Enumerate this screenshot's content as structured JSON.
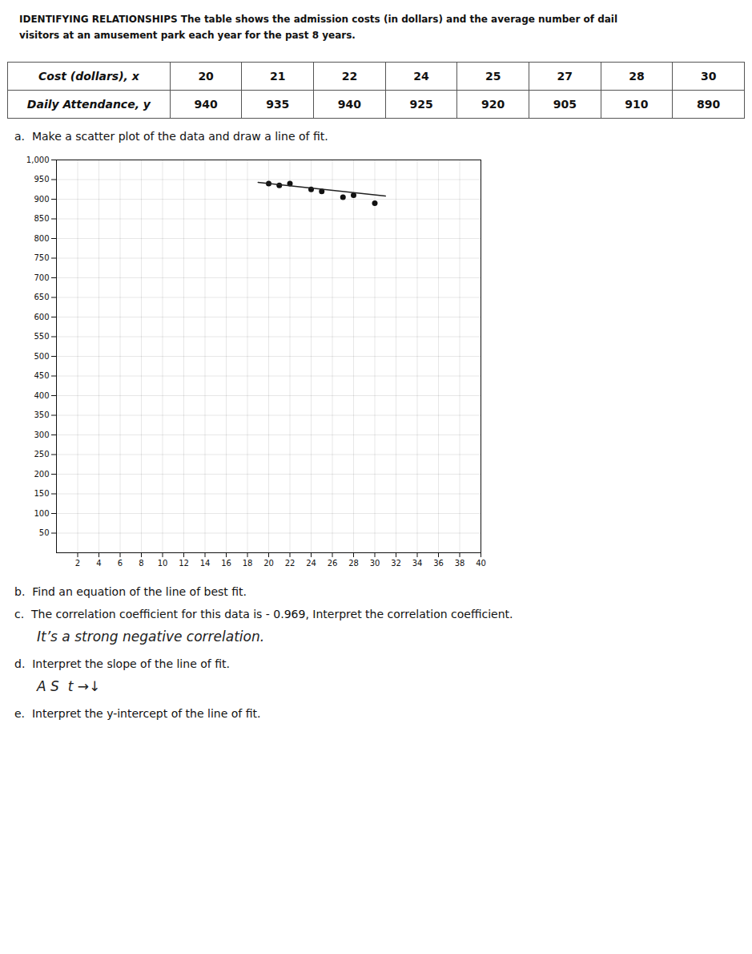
{
  "chart_data": {
    "type": "scatter",
    "title": "IDENTIFYING RELATIONSHIPS The table shows the admission costs (in dollars) and the average number of dail",
    "subtitle": "visitors at an amusement park each year for the past 8 years.",
    "table": {
      "rows": [
        [
          "Cost (dollars), x",
          "20",
          "21",
          "22",
          "24",
          "25",
          "27",
          "28",
          "30"
        ],
        [
          "Daily Attendance, y",
          "940",
          "935",
          "940",
          "925",
          "920",
          "905",
          "910",
          "890"
        ]
      ]
    },
    "series": [
      {
        "type": "scatter",
        "x": [
          20,
          21,
          22,
          24,
          25,
          27,
          28,
          30
        ],
        "values": [
          940,
          935,
          940,
          925,
          920,
          905,
          910,
          890
        ],
        "color": "#111111"
      },
      {
        "type": "line",
        "x": [
          19,
          31
        ],
        "values": [
          943,
          908
        ],
        "color": "#222222"
      }
    ],
    "xlim": [
      0,
      40
    ],
    "ylim": [
      0,
      1000
    ],
    "xticks": [
      2,
      4,
      6,
      8,
      10,
      12,
      14,
      16,
      18,
      20,
      22,
      24,
      26,
      28,
      30,
      32,
      34,
      36,
      38,
      40
    ],
    "yticks": [
      50,
      100,
      150,
      200,
      250,
      300,
      350,
      400,
      450,
      500,
      550,
      600,
      650,
      700,
      750,
      800,
      850,
      900,
      950,
      1000
    ],
    "grid": true,
    "questions": [
      {
        "text": "a.  Make a scatter plot of the data and draw a line of fit."
      },
      {
        "text": "b.  Find an equation of the line of best fit."
      },
      {
        "text": "c.  The correlation coefficient for this data is - 0.969, Interpret the correlation coefficient.",
        "answer": "It’s a strong negative correlation."
      },
      {
        "text": "d.  Interpret the slope of the line of fit.",
        "answer": "A S  t →↓"
      },
      {
        "text": "e.  Interpret the y-intercept of the line of fit."
      }
    ]
  }
}
